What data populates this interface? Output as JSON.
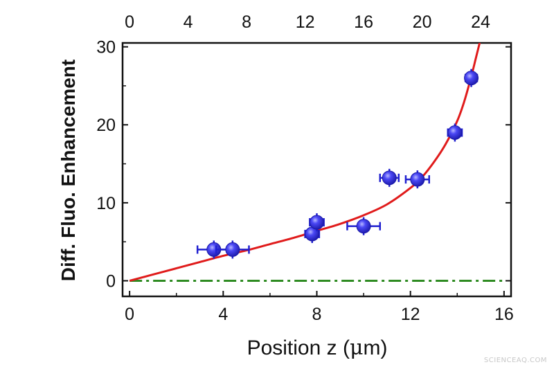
{
  "chart_data": {
    "type": "scatter",
    "xlabel_prefix": "Position z (",
    "xlabel_mu": "μ",
    "xlabel_suffix": "m)",
    "ylabel": "Diff. Fluo. Enhancement",
    "xlim": [
      -0.3,
      16.3
    ],
    "ylim": [
      -2,
      30.5
    ],
    "x_ticks": [
      "0",
      "4",
      "8",
      "12",
      "16"
    ],
    "y_ticks": [
      "0",
      "10",
      "20",
      "30"
    ],
    "top_ticks": [
      "0",
      "4",
      "8",
      "12",
      "16",
      "20",
      "24"
    ],
    "points": [
      {
        "x": 3.6,
        "y": 4.0,
        "xerr": 0.7
      },
      {
        "x": 4.4,
        "y": 4.0,
        "xerr": 0.7
      },
      {
        "x": 7.8,
        "y": 6.0,
        "xerr": 0.3
      },
      {
        "x": 8.0,
        "y": 7.5,
        "xerr": 0.3
      },
      {
        "x": 10.0,
        "y": 7.0,
        "xerr": 0.7
      },
      {
        "x": 11.1,
        "y": 13.2,
        "xerr": 0.4
      },
      {
        "x": 12.3,
        "y": 13.0,
        "xerr": 0.5
      },
      {
        "x": 13.9,
        "y": 19.0,
        "xerr": 0.3
      },
      {
        "x": 14.6,
        "y": 26.0,
        "xerr": 0.25
      }
    ],
    "fit_curve": {
      "x": [
        0,
        1,
        2,
        3,
        4,
        5,
        6,
        7,
        8,
        9,
        10,
        11,
        12,
        12.5,
        13,
        13.5,
        14,
        14.3,
        14.6,
        14.8,
        15.0
      ],
      "y": [
        0,
        0.8,
        1.6,
        2.4,
        3.2,
        3.9,
        4.7,
        5.5,
        6.4,
        7.3,
        8.4,
        9.8,
        11.9,
        13.3,
        15.2,
        17.5,
        20.5,
        23.0,
        26.2,
        28.6,
        31.0
      ]
    },
    "baseline": {
      "y": 0,
      "x": [
        0,
        16
      ]
    },
    "colors": {
      "marker": "#2f2cf0",
      "errorbar": "#2020d0",
      "fit": "#e01b1b",
      "baseline": "#2e8b22",
      "axis": "#111111"
    }
  },
  "watermark": "SCIENCEAQ.COM"
}
